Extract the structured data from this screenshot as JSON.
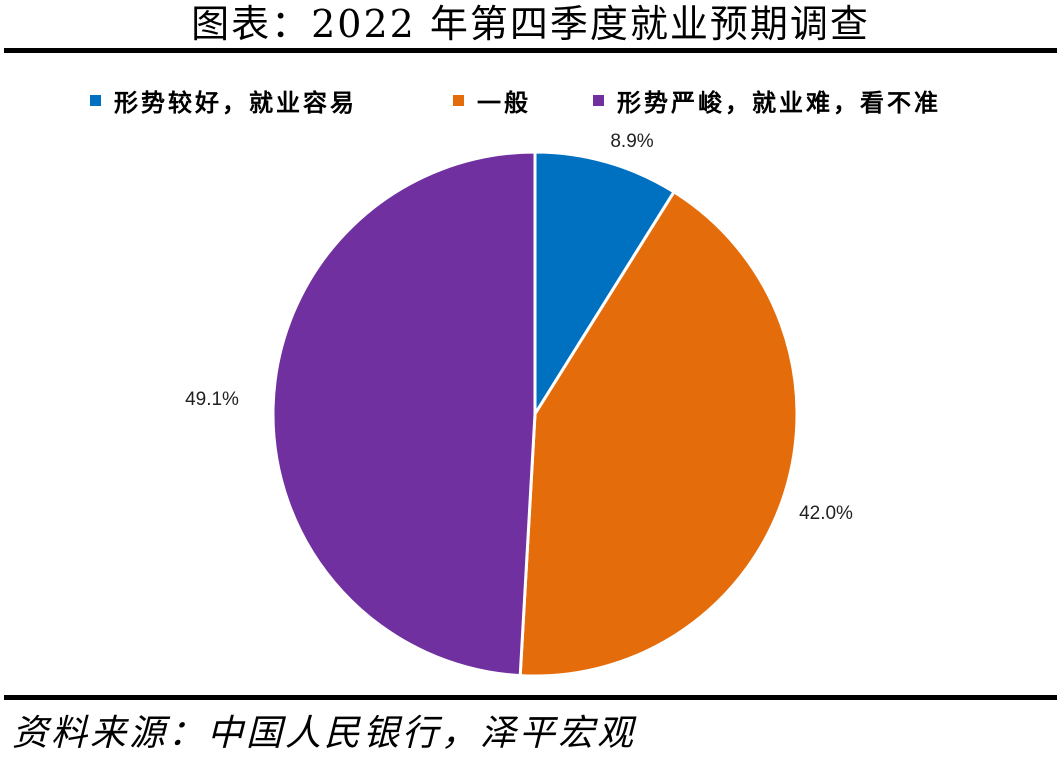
{
  "title": "图表：2022 年第四季度就业预期调查",
  "source": "资料来源：中国人民银行，泽平宏观",
  "chart_data": {
    "type": "pie",
    "title": "图表：2022 年第四季度就业预期调查",
    "legend_position": "top",
    "categories": [
      "形势较好，就业容易",
      "一般",
      "形势严峻，就业难，看不准"
    ],
    "values": [
      8.9,
      42.0,
      49.1
    ],
    "labels": [
      "8.9%",
      "42.0%",
      "49.1%"
    ],
    "colors": [
      "#0070C0",
      "#E46C0A",
      "#7030A0"
    ]
  }
}
